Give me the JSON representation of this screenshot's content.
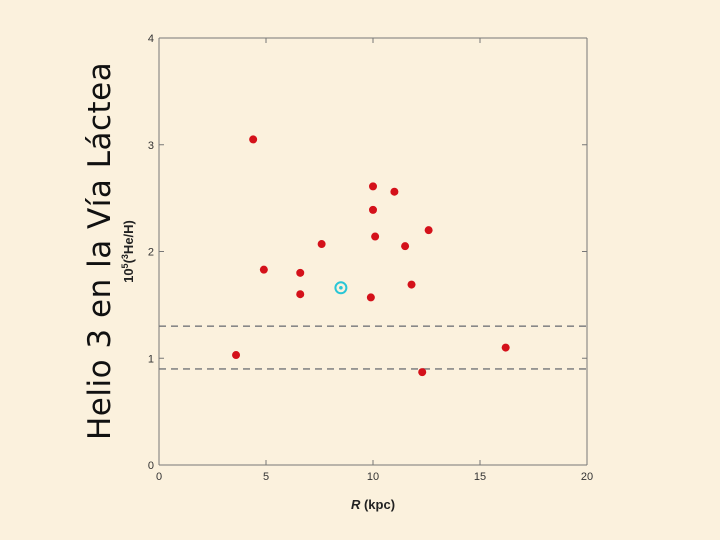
{
  "slide": {
    "title": "Helio 3 en la Vía Láctea"
  },
  "colors": {
    "background": "#fbf1dd",
    "plot_background": "#fbf1dd",
    "point": "#d4111a",
    "sun_marker": "#29c6d6",
    "reference_line": "#888888",
    "axis": "#777777"
  },
  "chart_data": {
    "type": "scatter",
    "title": "",
    "xlabel_italic": "R",
    "xlabel_rest": " (kpc)",
    "ylabel_prefix": "10",
    "ylabel_exp": "5",
    "ylabel_paren_open": "(",
    "ylabel_isotope": "3",
    "ylabel_rest": "He/H)",
    "xlim": [
      0,
      20
    ],
    "ylim": [
      0,
      4
    ],
    "xticks": [
      0,
      5,
      10,
      15,
      20
    ],
    "yticks": [
      0,
      1,
      2,
      3,
      4
    ],
    "grid": false,
    "series": [
      {
        "marker": "filled-circle",
        "points": [
          {
            "x": 3.6,
            "y": 1.03
          },
          {
            "x": 4.4,
            "y": 3.05
          },
          {
            "x": 4.9,
            "y": 1.83
          },
          {
            "x": 6.6,
            "y": 1.8
          },
          {
            "x": 6.6,
            "y": 1.6
          },
          {
            "x": 7.6,
            "y": 2.07
          },
          {
            "x": 9.9,
            "y": 1.57
          },
          {
            "x": 10.0,
            "y": 2.61
          },
          {
            "x": 10.0,
            "y": 2.39
          },
          {
            "x": 10.1,
            "y": 2.14
          },
          {
            "x": 11.0,
            "y": 2.56
          },
          {
            "x": 11.5,
            "y": 2.05
          },
          {
            "x": 11.8,
            "y": 1.69
          },
          {
            "x": 12.3,
            "y": 0.87
          },
          {
            "x": 12.6,
            "y": 2.2
          },
          {
            "x": 16.2,
            "y": 1.1
          }
        ]
      }
    ],
    "sun": {
      "x": 8.5,
      "y": 1.66,
      "marker": "circled-dot"
    },
    "reference_lines": [
      {
        "y": 1.3,
        "style": "dashed"
      },
      {
        "y": 0.9,
        "style": "dashed"
      }
    ]
  }
}
